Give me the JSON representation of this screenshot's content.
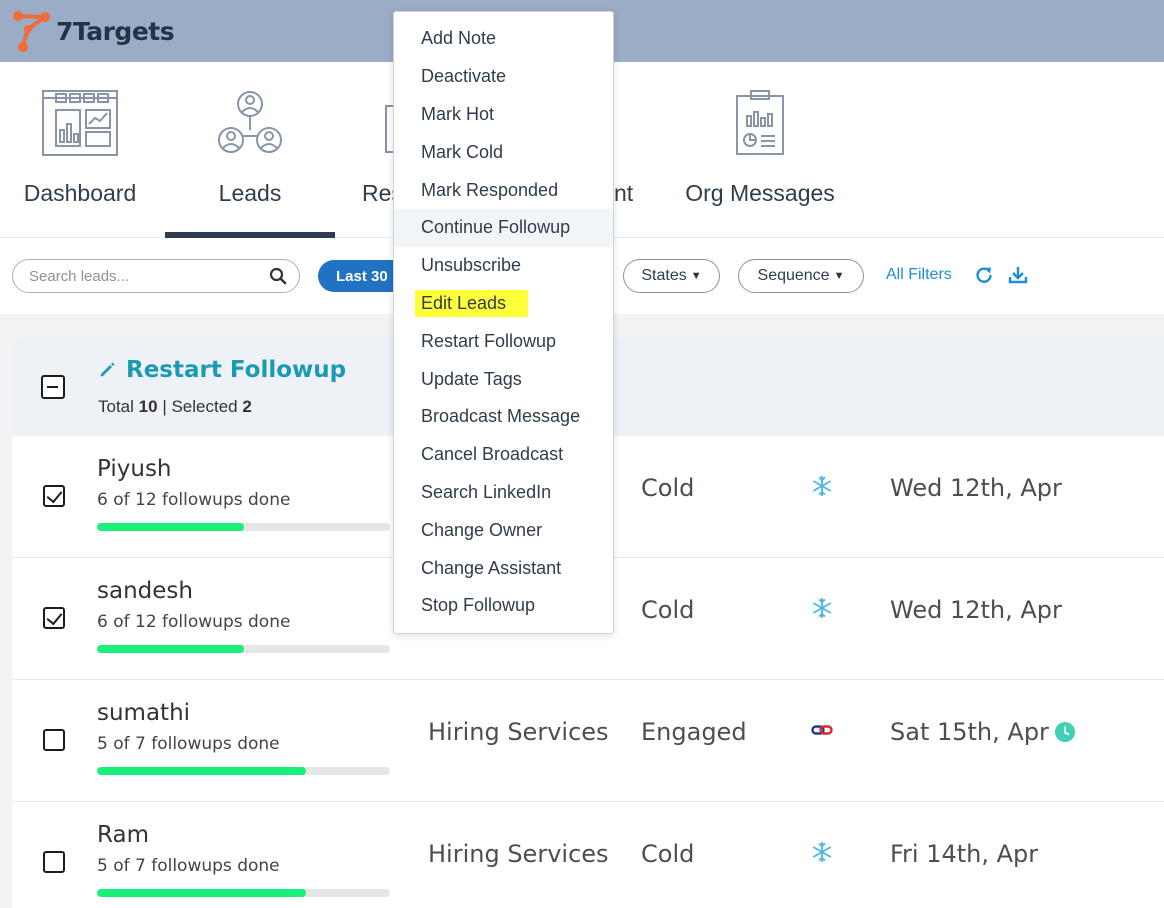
{
  "app": {
    "name": "7Targets"
  },
  "nav": {
    "items": [
      {
        "label": "Dashboard",
        "icon": "dashboard-icon"
      },
      {
        "label": "Leads",
        "icon": "leads-icon"
      },
      {
        "label": "Res",
        "icon": "responses-icon"
      },
      {
        "label": "nt",
        "icon": "assistant-icon"
      },
      {
        "label": "Org Messages",
        "icon": "org-messages-icon"
      }
    ],
    "active": "Leads"
  },
  "filters": {
    "search_placeholder": "Search leads...",
    "date_range": "Last 30",
    "states": "States",
    "sequence": "Sequence",
    "all_filters": "All Filters"
  },
  "list": {
    "title": "Restart Followup",
    "total_label": "Total",
    "total": "10",
    "selected_label": "Selected",
    "selected": "2",
    "rows": [
      {
        "name": "Piyush",
        "progress_text": "6 of 12 followups done",
        "progress": 0.5,
        "service": "",
        "status": "Cold",
        "status_icon": "snowflake-icon",
        "date": "Wed 12th, Apr",
        "checked": true,
        "clock": false
      },
      {
        "name": "sandesh",
        "progress_text": "6 of 12 followups done",
        "progress": 0.5,
        "service": "",
        "status": "Cold",
        "status_icon": "snowflake-icon",
        "date": "Wed 12th, Apr",
        "checked": true,
        "clock": false
      },
      {
        "name": "sumathi",
        "progress_text": "5 of 7 followups done",
        "progress": 0.714,
        "service": "Hiring Services",
        "status": "Engaged",
        "status_icon": "link-icon",
        "date": "Sat 15th, Apr",
        "checked": false,
        "clock": true
      },
      {
        "name": "Ram",
        "progress_text": "5 of 7 followups done",
        "progress": 0.714,
        "service": "Hiring Services",
        "status": "Cold",
        "status_icon": "snowflake-icon",
        "date": "Fri 14th, Apr",
        "checked": false,
        "clock": false
      }
    ]
  },
  "menu": {
    "items": [
      "Add Note",
      "Deactivate",
      "Mark Hot",
      "Mark Cold",
      "Mark Responded",
      "Continue Followup",
      "Unsubscribe",
      "Edit Leads",
      "Restart Followup",
      "Update Tags",
      "Broadcast Message",
      "Cancel Broadcast",
      "Search LinkedIn",
      "Change Owner",
      "Change Assistant",
      "Stop Followup"
    ],
    "hovered": "Continue Followup",
    "highlighted": "Edit Leads"
  },
  "colors": {
    "topbar": "#9aacc6",
    "accent": "#1a9ab3",
    "pill_blue": "#2272c3",
    "progress": "#18f07a",
    "highlight": "#ffff3a"
  }
}
